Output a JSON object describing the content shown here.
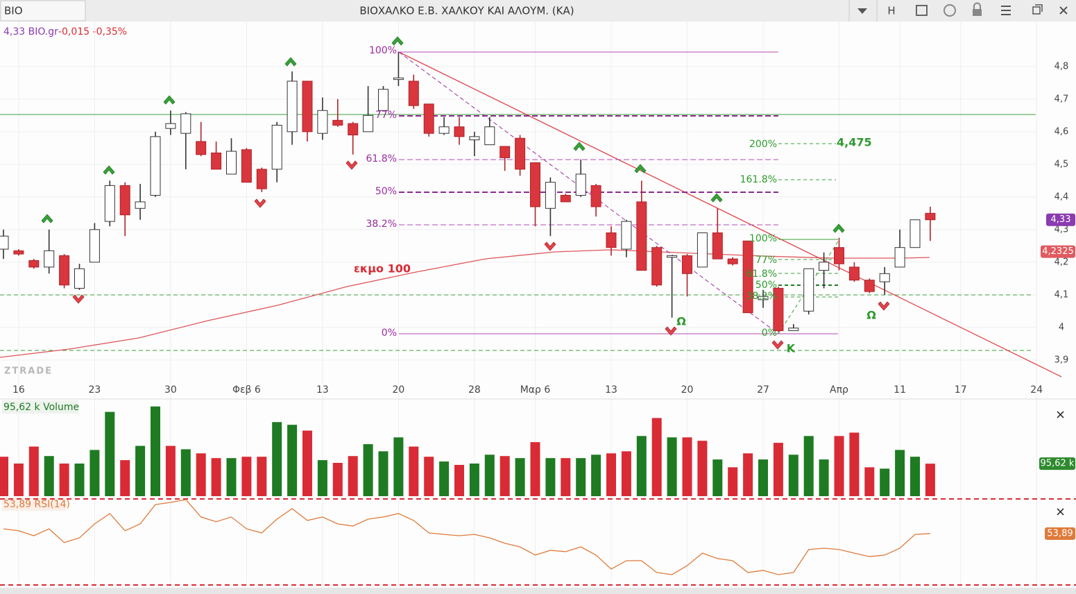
{
  "window": {
    "symbol": "BIO",
    "title": "ΒΙΟΧΑΛΚΟ Ε.Β. ΧΑΛΚΟΥ ΚΑΙ ΑΛΟΥΜ. (ΚΑ)",
    "button": "H"
  },
  "info": {
    "price": "4,33 BIO.gr",
    "change": "-0,015 -0,35%"
  },
  "watermark": "ZTRADE",
  "chart_data": [
    {
      "type": "candlestick",
      "categories": [
        null,
        "16",
        null,
        null,
        null,
        null,
        "23",
        null,
        null,
        null,
        null,
        "30",
        null,
        null,
        null,
        null,
        "Φεβ 6",
        null,
        null,
        null,
        null,
        "13",
        null,
        null,
        null,
        null,
        "20",
        null,
        null,
        null,
        null,
        "28",
        null,
        null,
        null,
        "Μαρ 6",
        null,
        null,
        null,
        null,
        "13",
        null,
        null,
        null,
        null,
        "20",
        null,
        null,
        null,
        null,
        "27",
        null,
        null,
        null,
        null,
        "Απρ",
        null,
        null,
        null,
        "11",
        null,
        null,
        null,
        "17",
        null,
        null,
        null,
        null,
        "24"
      ],
      "open": [
        4.24,
        4.235,
        4.205,
        4.185,
        4.22,
        4.12,
        4.2,
        4.325,
        4.435,
        4.365,
        4.405,
        4.61,
        4.595,
        4.57,
        4.535,
        4.47,
        4.545,
        4.485,
        4.485,
        4.6,
        4.755,
        4.595,
        4.635,
        4.625,
        4.6,
        4.665,
        4.76,
        4.755,
        4.685,
        4.595,
        4.615,
        4.575,
        4.56,
        4.555,
        4.58,
        4.505,
        4.365,
        4.405,
        4.405,
        4.435,
        4.29,
        4.24,
        4.385,
        4.245,
        4.215,
        4.22,
        4.185,
        4.29,
        4.21,
        4.265,
        4.085,
        4.12,
        3.99,
        4.05,
        4.175,
        4.245,
        4.185,
        4.145,
        4.14,
        4.185,
        4.245,
        4.35,
        null,
        null,
        null,
        null,
        null,
        null,
        null
      ],
      "high": [
        4.3,
        4.24,
        4.21,
        4.3,
        4.225,
        4.195,
        4.32,
        4.45,
        4.445,
        4.44,
        4.6,
        4.665,
        4.66,
        4.63,
        4.57,
        4.58,
        4.55,
        4.49,
        4.63,
        4.785,
        4.755,
        4.705,
        4.7,
        4.63,
        4.74,
        4.74,
        4.845,
        4.775,
        4.685,
        4.645,
        4.645,
        4.6,
        4.645,
        4.555,
        4.59,
        4.505,
        4.46,
        4.41,
        4.515,
        4.44,
        4.31,
        4.33,
        4.45,
        4.25,
        4.22,
        4.225,
        4.29,
        4.365,
        4.215,
        4.265,
        4.115,
        4.125,
        4.01,
        4.18,
        4.23,
        4.275,
        4.2,
        4.15,
        4.185,
        4.3,
        4.33,
        4.37,
        null,
        null,
        null,
        null,
        null,
        null,
        null
      ],
      "low": [
        4.21,
        4.22,
        4.18,
        4.165,
        4.12,
        4.115,
        4.2,
        4.31,
        4.28,
        4.33,
        4.4,
        4.59,
        4.485,
        4.525,
        4.485,
        4.47,
        4.445,
        4.415,
        4.445,
        4.56,
        4.57,
        4.575,
        4.615,
        4.53,
        4.6,
        4.665,
        4.74,
        4.67,
        4.585,
        4.59,
        4.56,
        4.525,
        4.56,
        4.48,
        4.465,
        4.31,
        4.28,
        4.385,
        4.4,
        4.34,
        4.22,
        4.215,
        4.175,
        4.125,
        4.03,
        4.095,
        4.185,
        4.21,
        4.19,
        4.045,
        4.06,
        3.985,
        3.99,
        4.04,
        4.12,
        4.175,
        4.14,
        4.105,
        4.1,
        4.185,
        4.245,
        4.265,
        null,
        null,
        null,
        null,
        null,
        null,
        null
      ],
      "close": [
        4.28,
        4.225,
        4.185,
        4.235,
        4.13,
        4.18,
        4.3,
        4.435,
        4.345,
        4.385,
        4.585,
        4.625,
        4.655,
        4.53,
        4.485,
        4.54,
        4.445,
        4.425,
        4.62,
        4.755,
        4.6,
        4.665,
        4.62,
        4.59,
        4.65,
        4.73,
        4.765,
        4.68,
        4.595,
        4.615,
        4.585,
        4.585,
        4.615,
        4.52,
        4.485,
        4.37,
        4.445,
        4.385,
        4.47,
        4.37,
        4.245,
        4.325,
        4.175,
        4.13,
        4.22,
        4.165,
        4.29,
        4.21,
        4.195,
        4.045,
        4.095,
        3.99,
        3.998,
        4.18,
        4.2,
        4.195,
        4.145,
        4.11,
        4.165,
        4.245,
        4.33,
        4.33,
        null,
        null,
        null,
        null,
        null,
        null,
        null
      ],
      "up_color": "#ffffff",
      "down_color": "#d9363e",
      "ylim": [
        3.838,
        4.94
      ],
      "yticks": [
        {
          "value": 3.9,
          "label": "3,9"
        },
        {
          "value": 4,
          "label": "4"
        },
        {
          "value": 4.1,
          "label": "4,1"
        },
        {
          "value": 4.2,
          "label": "4,2"
        },
        {
          "value": 4.3,
          "label": "4,3"
        },
        {
          "value": 4.4,
          "label": "4,4"
        },
        {
          "value": 4.5,
          "label": "4,5"
        },
        {
          "value": 4.6,
          "label": "4,6"
        },
        {
          "value": 4.7,
          "label": "4,7"
        },
        {
          "value": 4.8,
          "label": "4,8"
        }
      ],
      "grid": true,
      "last_label": "4,33",
      "ma": {
        "name": "εκμο 100",
        "last_value": 4.2325,
        "last_label": "4,2325"
      },
      "annotations": {
        "fib": [
          "100%",
          "77%",
          "61.8%",
          "50%",
          "38.2%",
          "0%"
        ],
        "fib2": [
          "200%",
          "161.8%",
          "100%",
          "77%",
          "61.8%",
          "50%",
          "38.2%",
          "0%"
        ],
        "target": "4,475",
        "marks": [
          "Ω",
          "Ω",
          "Κ"
        ]
      }
    },
    {
      "type": "bar",
      "title": "95,62 k Volume",
      "values": [
        116,
        96,
        146,
        118,
        96,
        96,
        136,
        248,
        106,
        148,
        264,
        148,
        138,
        126,
        112,
        112,
        116,
        116,
        218,
        210,
        193,
        106,
        98,
        118,
        153,
        132,
        173,
        146,
        116,
        102,
        92,
        96,
        122,
        118,
        112,
        159,
        112,
        112,
        112,
        122,
        126,
        132,
        177,
        230,
        173,
        173,
        163,
        108,
        85,
        126,
        108,
        157,
        122,
        177,
        108,
        177,
        187,
        85,
        81,
        136,
        116,
        95.62
      ],
      "colors": [
        "#d92b35",
        "#d92b35",
        "#d92b35",
        "#1e7b22",
        "#d92b35",
        "#1e7b22",
        "#1e7b22",
        "#1e7b22",
        "#d92b35",
        "#1e7b22",
        "#1e7b22",
        "#d92b35",
        "#1e7b22",
        "#d92b35",
        "#d92b35",
        "#1e7b22",
        "#d92b35",
        "#d92b35",
        "#1e7b22",
        "#1e7b22",
        "#d92b35",
        "#1e7b22",
        "#d92b35",
        "#d92b35",
        "#1e7b22",
        "#1e7b22",
        "#1e7b22",
        "#d92b35",
        "#d92b35",
        "#1e7b22",
        "#d92b35",
        "#1e7b22",
        "#1e7b22",
        "#d92b35",
        "#1e7b22",
        "#d92b35",
        "#1e7b22",
        "#d92b35",
        "#1e7b22",
        "#1e7b22",
        "#d92b35",
        "#d92b35",
        "#1e7b22",
        "#d92b35",
        "#1e7b22",
        "#d92b35",
        "#d92b35",
        "#1e7b22",
        "#d92b35",
        "#d92b35",
        "#1e7b22",
        "#d92b35",
        "#1e7b22",
        "#1e7b22",
        "#1e7b22",
        "#d92b35",
        "#d92b35",
        "#d92b35",
        "#1e7b22",
        "#1e7b22",
        "#1e7b22",
        "#d92b35"
      ],
      "ylim": [
        0,
        290
      ],
      "last_label": "95,62 k"
    },
    {
      "type": "line",
      "title": "53,89 RSI(14)",
      "color": "#e07a3a",
      "values": [
        56.1,
        55.2,
        52.9,
        56.1,
        49.7,
        51.9,
        58.4,
        63.2,
        55.2,
        58.4,
        67.4,
        68.4,
        69.7,
        61.6,
        59.4,
        61.6,
        56.1,
        54.2,
        60.6,
        65.5,
        60.0,
        61.6,
        58.4,
        57.4,
        60.6,
        61.6,
        63.2,
        60.0,
        54.2,
        53.5,
        52.9,
        53.5,
        51.9,
        49.4,
        47.7,
        43.9,
        46.1,
        45.5,
        47.7,
        43.9,
        37.4,
        41.3,
        41.3,
        35.8,
        34.8,
        39.0,
        44.8,
        42.3,
        41.3,
        35.8,
        36.8,
        34.8,
        35.8,
        46.5,
        47.1,
        46.5,
        44.8,
        43.2,
        43.9,
        47.1,
        53.5,
        53.89
      ],
      "ylim": [
        30,
        70
      ],
      "levels": [
        70,
        30
      ],
      "last_label": "53,89"
    }
  ]
}
